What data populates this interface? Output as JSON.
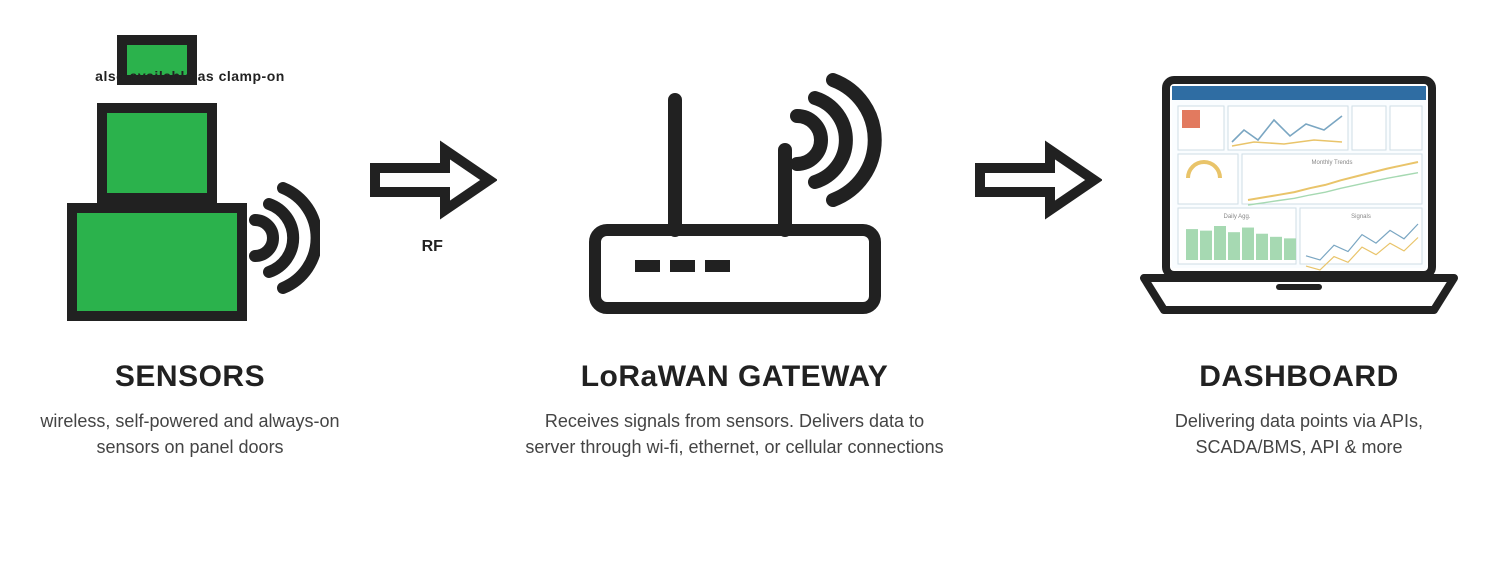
{
  "colors": {
    "sensor_green": "#2bb24c",
    "outline": "#212121",
    "text": "#212121",
    "desc": "#444444",
    "bg": "#ffffff",
    "laptop_screen_bg": "#fafdff",
    "laptop_border": "#b8ccd9",
    "chart_accent": "#e9c46a",
    "chart_green": "#a6d9b2",
    "chart_line": "#7aa6c2"
  },
  "typography": {
    "title_fontsize": 30,
    "title_weight": 700,
    "desc_fontsize": 18,
    "caption_fontsize": 14,
    "arrow_sub_fontsize": 16
  },
  "sensors": {
    "caption": "also available as clamp-on",
    "title": "SENSORS",
    "desc": "wireless, self-powered and always-on sensors on panel doors"
  },
  "arrow1": {
    "sub": "RF"
  },
  "gateway": {
    "title": "LoRaWAN GATEWAY",
    "desc": "Receives signals from sensors. Delivers data to server through wi-fi, ethernet, or cellular connections"
  },
  "arrow2": {
    "sub": ""
  },
  "dashboard": {
    "title": "DASHBOARD",
    "desc": "Delivering data points via APIs, SCADA/BMS, API & more"
  },
  "dashboard_charts": {
    "big_line_values": [
      10,
      14,
      18,
      22,
      28,
      33,
      40,
      46,
      52,
      58,
      63,
      68
    ],
    "bars_values": [
      40,
      38,
      44,
      36,
      42,
      34,
      30,
      28
    ],
    "multiline_values": [
      30,
      28,
      35,
      32,
      40,
      36,
      42,
      38,
      45
    ]
  }
}
